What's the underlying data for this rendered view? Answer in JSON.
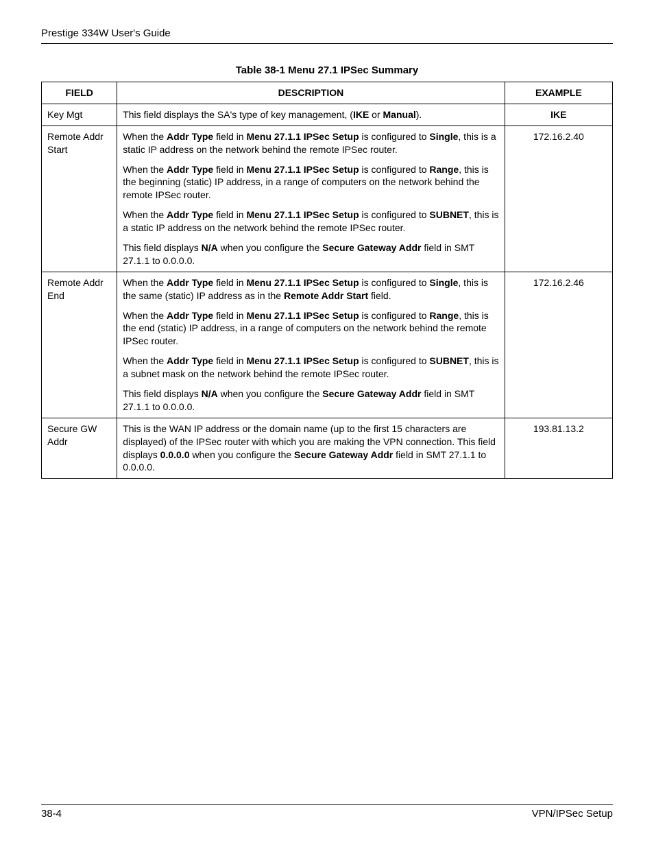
{
  "header": {
    "title": "Prestige 334W User's Guide"
  },
  "table": {
    "caption": "Table 38-1 Menu 27.1 IPSec Summary",
    "columns": {
      "field": "FIELD",
      "description": "DESCRIPTION",
      "example": "EXAMPLE"
    },
    "rows": [
      {
        "field": "Key Mgt",
        "example": "IKE",
        "example_bold": true,
        "desc": [
          [
            {
              "t": "This field displays the SA's type of key management, ("
            },
            {
              "t": "IKE",
              "b": true
            },
            {
              "t": " or "
            },
            {
              "t": "Manual",
              "b": true
            },
            {
              "t": ")."
            }
          ]
        ]
      },
      {
        "field": "Remote Addr Start",
        "example": "172.16.2.40",
        "desc": [
          [
            {
              "t": "When the "
            },
            {
              "t": "Addr Type",
              "b": true
            },
            {
              "t": " field in "
            },
            {
              "t": "Menu 27.1.1 IPSec Setup",
              "b": true
            },
            {
              "t": " is configured to "
            },
            {
              "t": "Single",
              "b": true
            },
            {
              "t": ", this is a static IP address on the network behind the remote IPSec router."
            }
          ],
          [
            {
              "t": "When the "
            },
            {
              "t": "Addr Type",
              "b": true
            },
            {
              "t": " field in "
            },
            {
              "t": "Menu 27.1.1 IPSec Setup",
              "b": true
            },
            {
              "t": " is configured to "
            },
            {
              "t": "Range",
              "b": true
            },
            {
              "t": ", this is the beginning (static) IP address, in a range of computers on the network behind the remote IPSec router."
            }
          ],
          [
            {
              "t": "When the "
            },
            {
              "t": "Addr Type",
              "b": true
            },
            {
              "t": " field in "
            },
            {
              "t": "Menu 27.1.1 IPSec Setup",
              "b": true
            },
            {
              "t": " is configured to "
            },
            {
              "t": "SUBNET",
              "b": true
            },
            {
              "t": ", this is a static IP address on the network behind the remote IPSec router."
            }
          ],
          [
            {
              "t": "This field displays "
            },
            {
              "t": "N/A",
              "b": true
            },
            {
              "t": " when you configure the "
            },
            {
              "t": "Secure Gateway Addr",
              "b": true
            },
            {
              "t": " field in SMT 27.1.1 to 0.0.0.0."
            }
          ]
        ]
      },
      {
        "field": "Remote Addr End",
        "example": "172.16.2.46",
        "desc": [
          [
            {
              "t": "When the "
            },
            {
              "t": "Addr Type",
              "b": true
            },
            {
              "t": " field in "
            },
            {
              "t": "Menu 27.1.1 IPSec Setup",
              "b": true
            },
            {
              "t": " is configured to "
            },
            {
              "t": "Single",
              "b": true
            },
            {
              "t": ", this is the same (static) IP address as in the "
            },
            {
              "t": "Remote Addr Start",
              "b": true
            },
            {
              "t": " field."
            }
          ],
          [
            {
              "t": "When the "
            },
            {
              "t": "Addr Type",
              "b": true
            },
            {
              "t": " field in "
            },
            {
              "t": "Menu 27.1.1 IPSec Setup",
              "b": true
            },
            {
              "t": " is configured to "
            },
            {
              "t": "Range",
              "b": true
            },
            {
              "t": ", this is the end (static) IP address, in a range of computers on the network behind the remote IPSec router."
            }
          ],
          [
            {
              "t": "When the "
            },
            {
              "t": "Addr Type",
              "b": true
            },
            {
              "t": " field in "
            },
            {
              "t": "Menu 27.1.1 IPSec Setup",
              "b": true
            },
            {
              "t": " is configured to "
            },
            {
              "t": "SUBNET",
              "b": true
            },
            {
              "t": ", this is a subnet mask on the network behind the remote IPSec router."
            }
          ],
          [
            {
              "t": "This field displays "
            },
            {
              "t": "N/A",
              "b": true
            },
            {
              "t": " when you configure the "
            },
            {
              "t": "Secure Gateway Addr",
              "b": true
            },
            {
              "t": " field in SMT 27.1.1 to 0.0.0.0."
            }
          ]
        ]
      },
      {
        "field": "Secure GW Addr",
        "example": "193.81.13.2",
        "desc": [
          [
            {
              "t": "This is the WAN IP address or the domain name (up to the first 15 characters are displayed) of the IPSec router with which you are making the VPN connection. This field displays "
            },
            {
              "t": "0.0.0.0",
              "b": true
            },
            {
              "t": " when you configure the "
            },
            {
              "t": "Secure Gateway Addr",
              "b": true
            },
            {
              "t": " field in SMT 27.1.1 to 0.0.0.0."
            }
          ]
        ]
      }
    ]
  },
  "footer": {
    "left": "38-4",
    "right": "VPN/IPSec Setup"
  }
}
